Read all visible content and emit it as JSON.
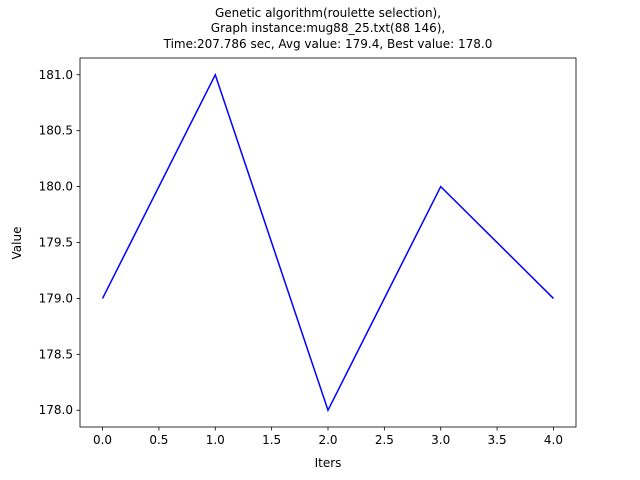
{
  "chart_data": {
    "type": "line",
    "title_lines": [
      "Genetic algorithm(roulette selection),",
      "Graph instance:mug88_25.txt(88 146),",
      "Time:207.786 sec, Avg value: 179.4, Best value: 178.0"
    ],
    "xlabel": "Iters",
    "ylabel": "Value",
    "x": [
      0,
      1,
      2,
      3,
      4
    ],
    "series": [
      {
        "values": [
          179.0,
          181.0,
          178.0,
          180.0,
          179.0
        ],
        "color": "#0000ff"
      }
    ],
    "xlim": [
      -0.2,
      4.2
    ],
    "ylim": [
      177.85,
      181.15
    ],
    "x_ticks": [
      0.0,
      0.5,
      1.0,
      1.5,
      2.0,
      2.5,
      3.0,
      3.5,
      4.0
    ],
    "x_tick_labels": [
      "0.0",
      "0.5",
      "1.0",
      "1.5",
      "2.0",
      "2.5",
      "3.0",
      "3.5",
      "4.0"
    ],
    "y_ticks": [
      178.0,
      178.5,
      179.0,
      179.5,
      180.0,
      180.5,
      181.0
    ],
    "y_tick_labels": [
      "178.0",
      "178.5",
      "179.0",
      "179.5",
      "180.0",
      "180.5",
      "181.0"
    ],
    "grid": false,
    "legend": false
  }
}
